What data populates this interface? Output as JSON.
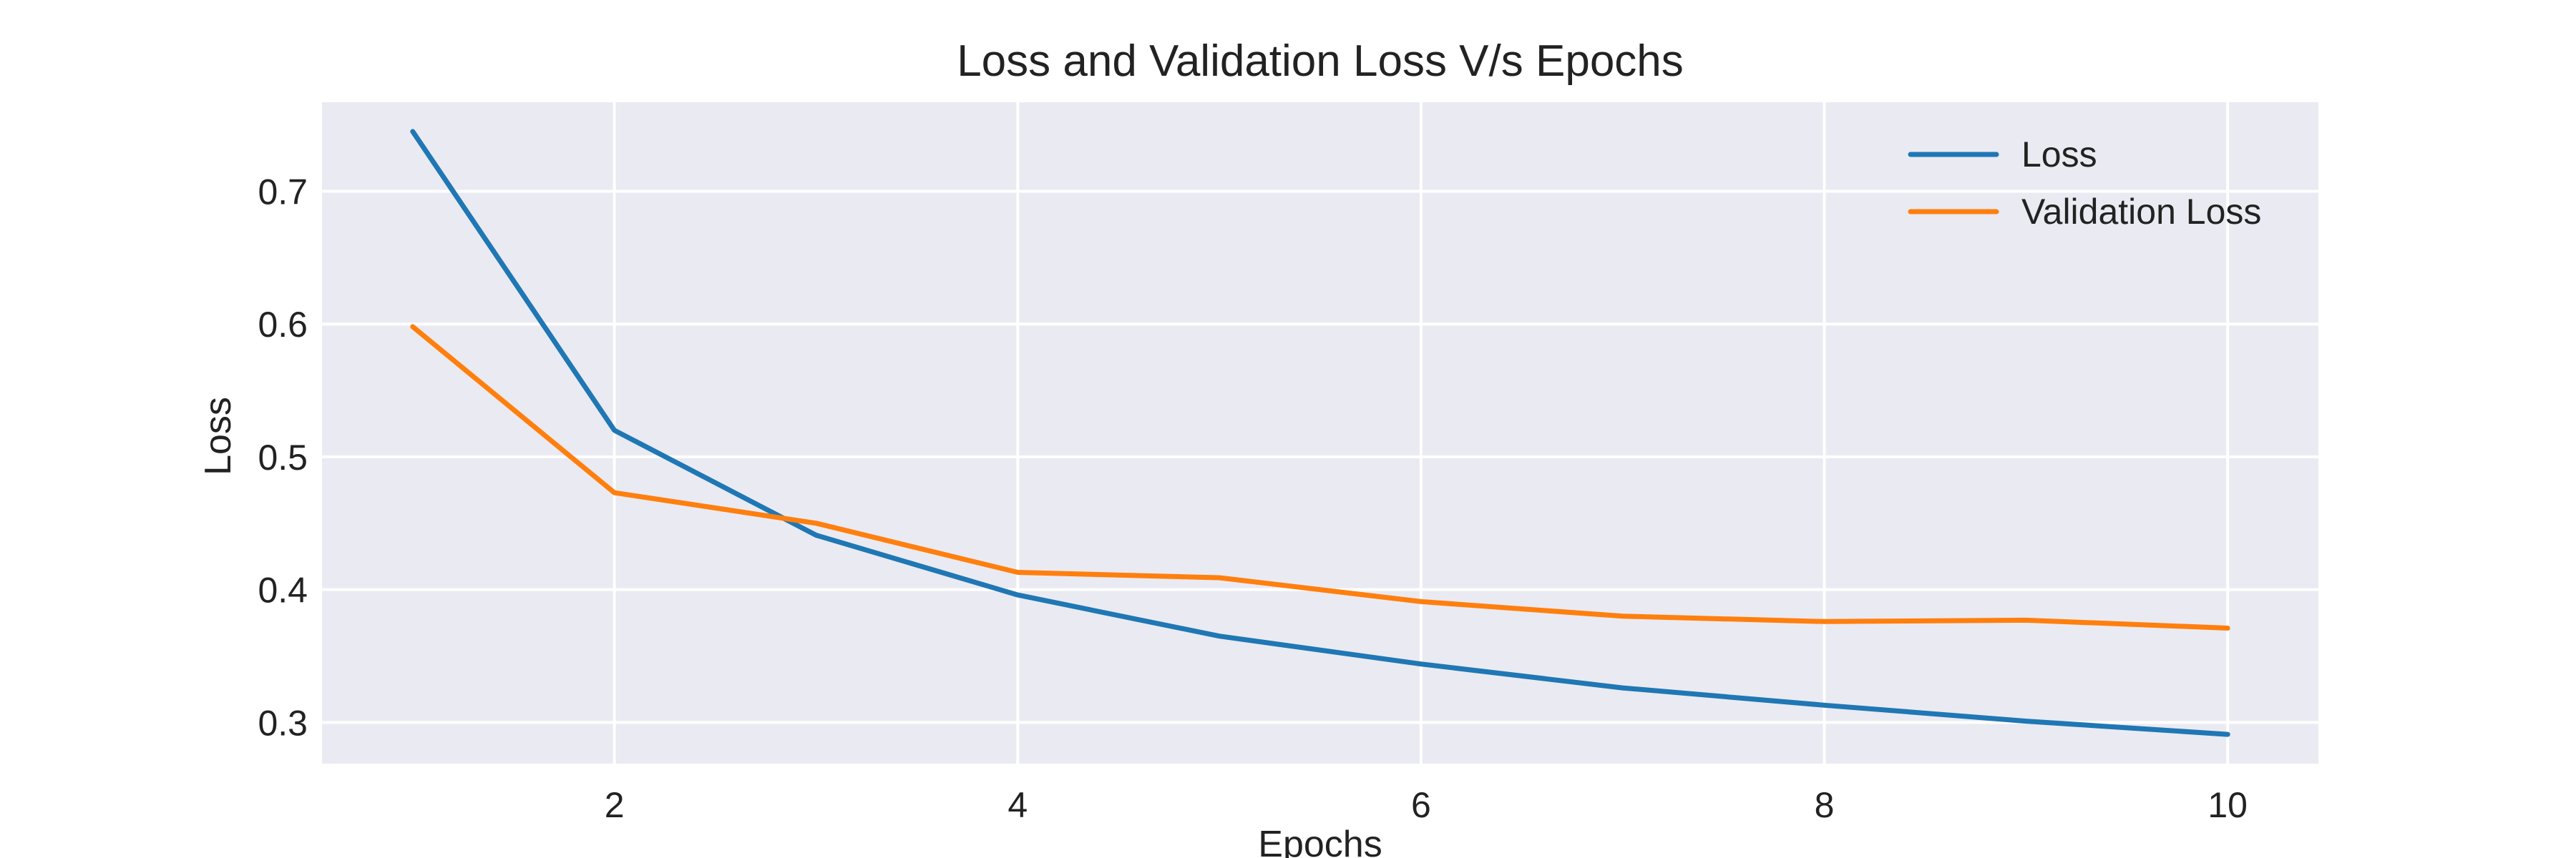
{
  "chart_data": {
    "type": "line",
    "title": "Loss and Validation Loss V/s Epochs",
    "xlabel": "Epochs",
    "ylabel": "Loss",
    "x": [
      1,
      2,
      3,
      4,
      5,
      6,
      7,
      8,
      9,
      10
    ],
    "series": [
      {
        "name": "Loss",
        "color": "#1f77b4",
        "values": [
          0.745,
          0.52,
          0.441,
          0.396,
          0.365,
          0.344,
          0.326,
          0.313,
          0.301,
          0.291
        ]
      },
      {
        "name": "Validation Loss",
        "color": "#ff7f0e",
        "values": [
          0.598,
          0.473,
          0.45,
          0.413,
          0.409,
          0.391,
          0.38,
          0.376,
          0.377,
          0.371
        ]
      }
    ],
    "xticks": [
      2,
      4,
      6,
      8,
      10
    ],
    "yticks": [
      0.3,
      0.4,
      0.5,
      0.6,
      0.7
    ],
    "xlim": [
      0.55,
      10.45
    ],
    "ylim": [
      0.269,
      0.767
    ],
    "grid": true,
    "legend_position": "top-right",
    "background": "#eaeaf2"
  }
}
